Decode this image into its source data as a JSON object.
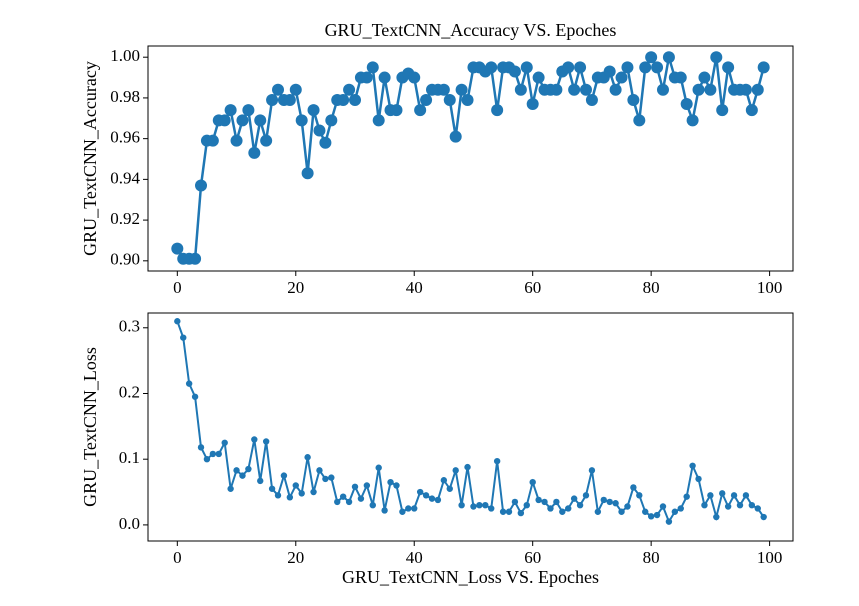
{
  "chart_data": [
    {
      "type": "line",
      "title": "GRU_TextCNN_Accuracy VS. Epoches",
      "ylabel": "GRU_TextCNN_Accuracy",
      "color": "#1f77b4",
      "x": [
        0,
        1,
        2,
        3,
        4,
        5,
        6,
        7,
        8,
        9,
        10,
        11,
        12,
        13,
        14,
        15,
        16,
        17,
        18,
        19,
        20,
        21,
        22,
        23,
        24,
        25,
        26,
        27,
        28,
        29,
        30,
        31,
        32,
        33,
        34,
        35,
        36,
        37,
        38,
        39,
        40,
        41,
        42,
        43,
        44,
        45,
        46,
        47,
        48,
        49,
        50,
        51,
        52,
        53,
        54,
        55,
        56,
        57,
        58,
        59,
        60,
        61,
        62,
        63,
        64,
        65,
        66,
        67,
        68,
        69,
        70,
        71,
        72,
        73,
        74,
        75,
        76,
        77,
        78,
        79,
        80,
        81,
        82,
        83,
        84,
        85,
        86,
        87,
        88,
        89,
        90,
        91,
        92,
        93,
        94,
        95,
        96,
        97,
        98,
        99
      ],
      "values": [
        0.906,
        0.901,
        0.901,
        0.901,
        0.937,
        0.959,
        0.959,
        0.969,
        0.969,
        0.974,
        0.959,
        0.969,
        0.974,
        0.953,
        0.969,
        0.959,
        0.979,
        0.984,
        0.979,
        0.979,
        0.984,
        0.969,
        0.943,
        0.974,
        0.964,
        0.958,
        0.969,
        0.979,
        0.979,
        0.984,
        0.979,
        0.99,
        0.99,
        0.995,
        0.969,
        0.99,
        0.974,
        0.974,
        0.99,
        0.992,
        0.99,
        0.974,
        0.979,
        0.984,
        0.984,
        0.984,
        0.979,
        0.961,
        0.984,
        0.979,
        0.995,
        0.995,
        0.993,
        0.995,
        0.974,
        0.995,
        0.995,
        0.993,
        0.984,
        0.995,
        0.977,
        0.99,
        0.984,
        0.984,
        0.984,
        0.993,
        0.995,
        0.984,
        0.995,
        0.984,
        0.979,
        0.99,
        0.99,
        0.993,
        0.984,
        0.99,
        0.995,
        0.979,
        0.969,
        0.995,
        1.0,
        0.995,
        0.984,
        1.0,
        0.99,
        0.99,
        0.977,
        0.969,
        0.984,
        0.99,
        0.984,
        1.0,
        0.974,
        0.995,
        0.984,
        0.984,
        0.984,
        0.974,
        0.984,
        0.995
      ],
      "xlim": [
        -4.95,
        103.95
      ],
      "xticks": [
        0,
        20,
        40,
        60,
        80,
        100
      ],
      "ylim": [
        0.895,
        1.0055
      ],
      "yticks": [
        {
          "value": 0.9,
          "label": "0.90"
        },
        {
          "value": 0.92,
          "label": "0.92"
        },
        {
          "value": 0.94,
          "label": "0.94"
        },
        {
          "value": 0.96,
          "label": "0.96"
        },
        {
          "value": 0.98,
          "label": "0.98"
        },
        {
          "value": 1.0,
          "label": "1.00"
        }
      ]
    },
    {
      "type": "line",
      "xlabel": "GRU_TextCNN_Loss VS. Epoches",
      "ylabel": "GRU_TextCNN_Loss",
      "color": "#1f77b4",
      "x": [
        0,
        1,
        2,
        3,
        4,
        5,
        6,
        7,
        8,
        9,
        10,
        11,
        12,
        13,
        14,
        15,
        16,
        17,
        18,
        19,
        20,
        21,
        22,
        23,
        24,
        25,
        26,
        27,
        28,
        29,
        30,
        31,
        32,
        33,
        34,
        35,
        36,
        37,
        38,
        39,
        40,
        41,
        42,
        43,
        44,
        45,
        46,
        47,
        48,
        49,
        50,
        51,
        52,
        53,
        54,
        55,
        56,
        57,
        58,
        59,
        60,
        61,
        62,
        63,
        64,
        65,
        66,
        67,
        68,
        69,
        70,
        71,
        72,
        73,
        74,
        75,
        76,
        77,
        78,
        79,
        80,
        81,
        82,
        83,
        84,
        85,
        86,
        87,
        88,
        89,
        90,
        91,
        92,
        93,
        94,
        95,
        96,
        97,
        98,
        99
      ],
      "values": [
        0.31,
        0.285,
        0.215,
        0.195,
        0.118,
        0.1,
        0.108,
        0.108,
        0.125,
        0.055,
        0.083,
        0.075,
        0.085,
        0.13,
        0.067,
        0.127,
        0.055,
        0.045,
        0.075,
        0.042,
        0.06,
        0.048,
        0.103,
        0.05,
        0.083,
        0.07,
        0.072,
        0.035,
        0.043,
        0.035,
        0.058,
        0.04,
        0.06,
        0.03,
        0.087,
        0.022,
        0.065,
        0.06,
        0.02,
        0.025,
        0.025,
        0.05,
        0.045,
        0.04,
        0.038,
        0.068,
        0.055,
        0.083,
        0.03,
        0.088,
        0.028,
        0.03,
        0.03,
        0.025,
        0.097,
        0.02,
        0.02,
        0.035,
        0.018,
        0.03,
        0.065,
        0.038,
        0.035,
        0.025,
        0.035,
        0.02,
        0.025,
        0.04,
        0.03,
        0.045,
        0.083,
        0.02,
        0.038,
        0.035,
        0.033,
        0.02,
        0.028,
        0.057,
        0.045,
        0.02,
        0.013,
        0.015,
        0.028,
        0.005,
        0.02,
        0.025,
        0.043,
        0.09,
        0.07,
        0.03,
        0.045,
        0.012,
        0.048,
        0.028,
        0.045,
        0.03,
        0.045,
        0.03,
        0.025,
        0.012
      ],
      "xlim": [
        -4.95,
        103.95
      ],
      "xticks": [
        0,
        20,
        40,
        60,
        80,
        100
      ],
      "ylim": [
        -0.0245,
        0.3225
      ],
      "yticks": [
        {
          "value": 0,
          "label": "0.0"
        },
        0.1,
        0.2,
        0.3
      ]
    }
  ]
}
